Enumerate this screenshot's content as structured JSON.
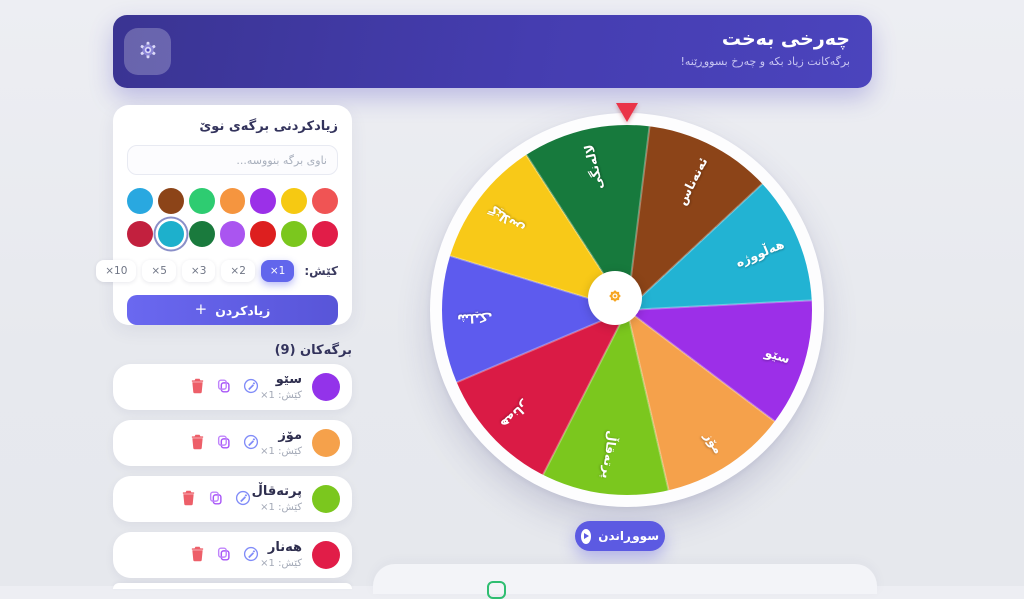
{
  "header": {
    "title": "چەرخی بەخت",
    "subtitle": "برگەکانت زیاد بکە و چەرخ بسووڕێنە!"
  },
  "add_card": {
    "title": "زیادکردنی برگەی نوێ",
    "input_placeholder": "ناوی برگە بنووسە...",
    "palette_rows": [
      [
        "#29a8e0",
        "#8c4418",
        "#2ecc71",
        "#f5953f",
        "#9b30e8",
        "#f6c912",
        "#f05454"
      ],
      [
        "#c2203e",
        "#1db0cc",
        "#1a7a3d",
        "#aa55f0",
        "#dd1f1f",
        "#7bc71e",
        "#e11d48"
      ]
    ],
    "selected_color": "#1db0cc",
    "weight_label": "کێش:",
    "weight_options": [
      {
        "label": "×1",
        "active": true
      },
      {
        "label": "×2",
        "active": false
      },
      {
        "label": "×3",
        "active": false
      },
      {
        "label": "×5",
        "active": false
      },
      {
        "label": "×10",
        "active": false
      }
    ],
    "add_button_label": "زیادکردن",
    "add_button_icon": "+"
  },
  "entries": {
    "heading": "برگەکان (9)",
    "count": 9,
    "weight_prefix": "کێش:",
    "items": [
      {
        "name": "سێو",
        "weight": "×1",
        "color": "#9333ea"
      },
      {
        "name": "مۆز",
        "weight": "×1",
        "color": "#f5a14b"
      },
      {
        "name": "پرتەقاڵ",
        "weight": "×1",
        "color": "#7bc71e"
      },
      {
        "name": "هەنار",
        "weight": "×1",
        "color": "#e11d48"
      }
    ]
  },
  "wheel": {
    "start_angle_deg": 327,
    "segment_angle_deg": 40,
    "segments": [
      {
        "label": "لالەنگی",
        "color": "#177a3d"
      },
      {
        "label": "ئەنەناس",
        "color": "#8c4418"
      },
      {
        "label": "هەڵووژە",
        "color": "#22b3d3"
      },
      {
        "label": "سێو",
        "color": "#9c2fe8"
      },
      {
        "label": "مۆز",
        "color": "#f5a14b"
      },
      {
        "label": "پرتەقاڵ",
        "color": "#7bc71e"
      },
      {
        "label": "هەنار",
        "color": "#da1b45"
      },
      {
        "label": "شلیک",
        "color": "#5d5bee"
      },
      {
        "label": "گێلاس",
        "color": "#f8c918"
      }
    ]
  },
  "spin_button": {
    "label": "سووڕاندن"
  },
  "colors": {
    "accent": "#5c5ae2",
    "header_gradient_start": "#3a3492",
    "header_gradient_end": "#4b44bd",
    "pointer_red": "#ea3448",
    "page_background": "#e9ebef",
    "success_green": "#2fbe71"
  }
}
